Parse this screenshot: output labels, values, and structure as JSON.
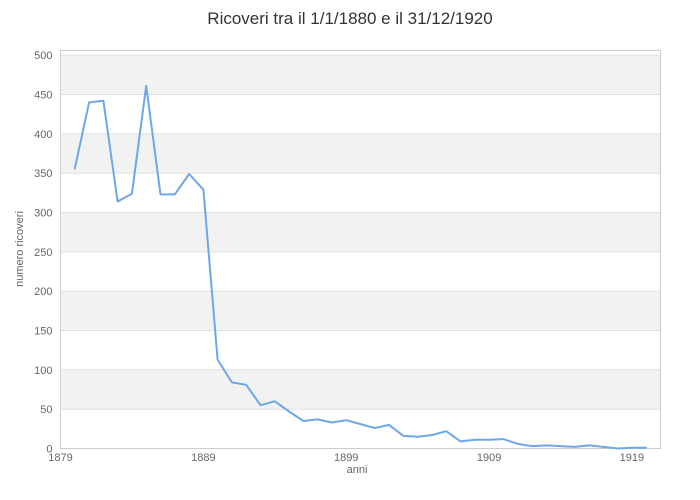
{
  "chart_data": {
    "type": "line",
    "title": "Ricoveri tra il 1/1/1880 e il 31/12/1920",
    "xlabel": "anni",
    "ylabel": "numero ricoveri",
    "x": [
      1880,
      1881,
      1882,
      1883,
      1884,
      1885,
      1886,
      1887,
      1888,
      1889,
      1890,
      1891,
      1892,
      1893,
      1894,
      1895,
      1896,
      1897,
      1898,
      1899,
      1900,
      1901,
      1902,
      1903,
      1904,
      1905,
      1906,
      1907,
      1908,
      1909,
      1910,
      1911,
      1912,
      1913,
      1914,
      1915,
      1916,
      1917,
      1918,
      1919,
      1920
    ],
    "values": [
      356,
      440,
      442,
      314,
      324,
      461,
      323,
      323,
      349,
      329,
      113,
      84,
      81,
      55,
      60,
      47,
      35,
      37,
      33,
      36,
      31,
      26,
      30,
      16,
      15,
      17,
      22,
      9,
      11,
      11,
      12,
      6,
      3,
      4,
      3,
      2,
      4,
      2,
      0,
      1,
      1
    ],
    "x_ticks": [
      1879,
      1889,
      1899,
      1909,
      1919
    ],
    "y_ticks": [
      0,
      50,
      100,
      150,
      200,
      250,
      300,
      350,
      400,
      450,
      500
    ],
    "xlim": [
      1879,
      1921
    ],
    "ylim": [
      0,
      506
    ],
    "grid": "horizontal-only",
    "vertical_gridlines": false,
    "legend": "none",
    "markers": "none",
    "alternating_bands": true
  },
  "colors": {
    "line": "#6ea7e8",
    "band": "#f2f2f2",
    "gridline": "#e0e0e0",
    "plot_border": "#cccccc",
    "title_text": "#333333",
    "axis_text": "#666666",
    "background": "#ffffff"
  }
}
